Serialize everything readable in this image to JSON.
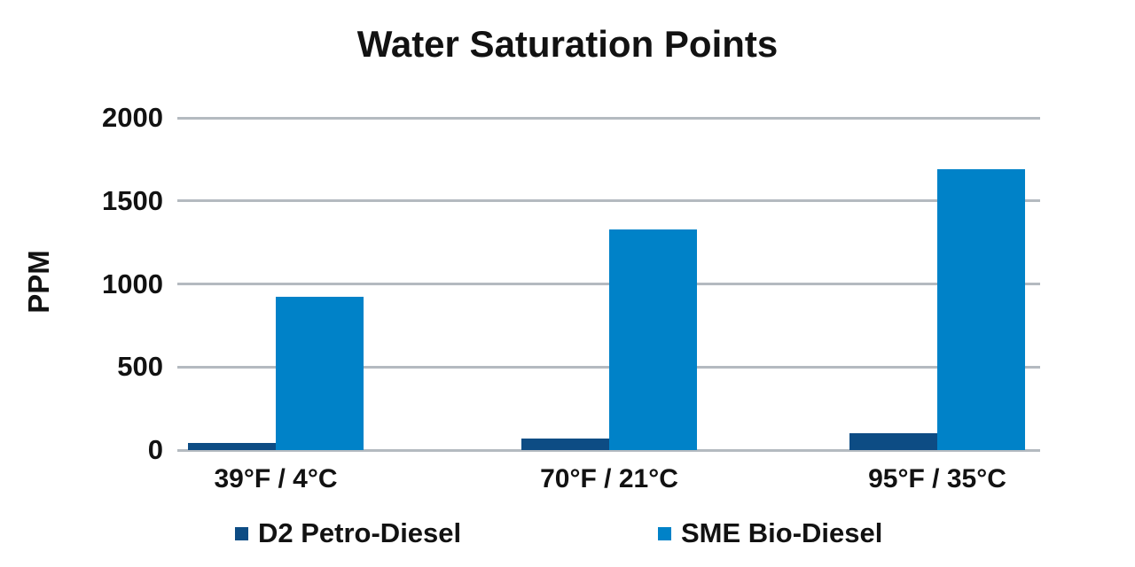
{
  "chart_data": {
    "type": "bar",
    "title": "Water Saturation Points",
    "xlabel": "",
    "ylabel": "PPM",
    "categories": [
      "39°F / 4°C",
      "70°F / 21°C",
      "95°F / 35°C"
    ],
    "series": [
      {
        "name": "D2 Petro-Diesel",
        "color": "#0d4c84",
        "values": [
          40,
          70,
          100
        ]
      },
      {
        "name": "SME Bio-Diesel",
        "color": "#0082c8",
        "values": [
          920,
          1330,
          1690
        ]
      }
    ],
    "ylim": [
      0,
      2000
    ],
    "yticks": [
      0,
      500,
      1000,
      1500,
      2000
    ],
    "grid": true,
    "gridline_color": "#b4bac0",
    "text_color": "#121212",
    "background_color": "#ffffff",
    "legend_position": "bottom"
  }
}
